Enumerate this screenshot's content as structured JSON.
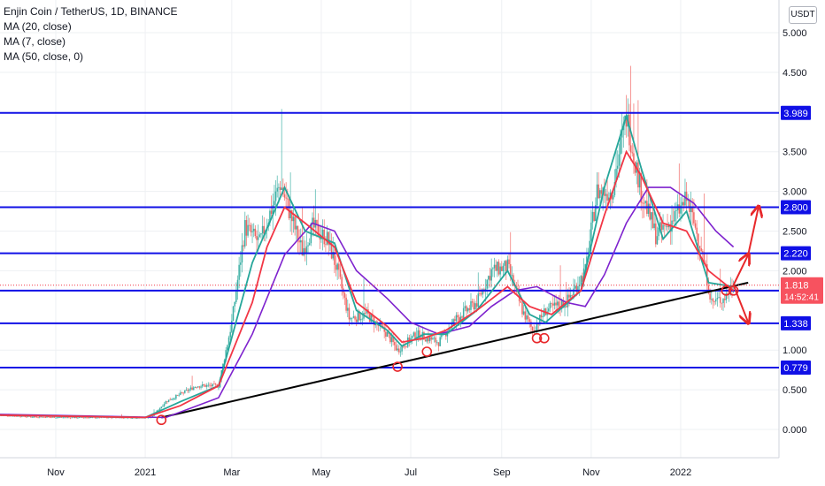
{
  "legend": {
    "symbol": "Enjin Coin / TetherUS, 1D, BINANCE",
    "ma20": "MA (20, close)",
    "ma7": "MA (7, close)",
    "ma50": "MA (50, close, 0)"
  },
  "unit_label": "USDT",
  "colors": {
    "grid": "#eef0f3",
    "axis_text": "#131722",
    "candle_up": "#26a69a",
    "candle_down": "#ef5350",
    "ma20": "#26a69a",
    "ma7": "#f23645",
    "ma50": "#7e22ce",
    "hline": "#1010e6",
    "trendline": "#000000",
    "annotation": "#e8282b",
    "price_tag": "#f7525f"
  },
  "chart_data": {
    "type": "candlestick",
    "x_scale": "time",
    "x_tick_labels": [
      "Nov",
      "2021",
      "Mar",
      "May",
      "Jul",
      "Sep",
      "Nov",
      "2022"
    ],
    "y_scale": "linear",
    "y_ticks": [
      "5.000",
      "4.500",
      "3.500",
      "3.000",
      "2.500",
      "2.000",
      "1.000",
      "0.500",
      "0.000"
    ],
    "ylim": [
      -0.3,
      5.3
    ],
    "horizontal_levels": [
      {
        "label": "3.989",
        "value": 3.989
      },
      {
        "label": "2.800",
        "value": 2.8
      },
      {
        "label": "2.220",
        "value": 2.22
      },
      {
        "label": "1.750",
        "value": 1.75
      },
      {
        "label": "1.338",
        "value": 1.338
      },
      {
        "label": "0.779",
        "value": 0.779
      }
    ],
    "last_price": {
      "label": "1.818",
      "value": 1.818,
      "countdown": "14:52:41"
    },
    "price_path": [
      [
        "2020-09-24",
        0.18
      ],
      [
        "2020-10-15",
        0.16
      ],
      [
        "2020-11-10",
        0.15
      ],
      [
        "2020-12-15",
        0.15
      ],
      [
        "2021-01-05",
        0.15
      ],
      [
        "2021-01-15",
        0.35
      ],
      [
        "2021-02-05",
        0.55
      ],
      [
        "2021-02-20",
        0.55
      ],
      [
        "2021-03-01",
        1.35
      ],
      [
        "2021-03-10",
        2.55
      ],
      [
        "2021-03-20",
        2.35
      ],
      [
        "2021-04-03",
        3.1
      ],
      [
        "2021-04-10",
        2.7
      ],
      [
        "2021-04-18",
        2.25
      ],
      [
        "2021-04-25",
        2.55
      ],
      [
        "2021-05-05",
        2.4
      ],
      [
        "2021-05-12",
        2.0
      ],
      [
        "2021-05-20",
        1.4
      ],
      [
        "2021-06-01",
        1.45
      ],
      [
        "2021-06-15",
        1.2
      ],
      [
        "2021-06-22",
        1.0
      ],
      [
        "2021-07-05",
        1.2
      ],
      [
        "2021-07-20",
        1.1
      ],
      [
        "2021-08-01",
        1.4
      ],
      [
        "2021-08-15",
        1.6
      ],
      [
        "2021-08-25",
        2.0
      ],
      [
        "2021-09-05",
        2.05
      ],
      [
        "2021-09-15",
        1.5
      ],
      [
        "2021-09-22",
        1.25
      ],
      [
        "2021-10-01",
        1.5
      ],
      [
        "2021-10-15",
        1.6
      ],
      [
        "2021-10-28",
        2.0
      ],
      [
        "2021-11-05",
        3.0
      ],
      [
        "2021-11-15",
        3.0
      ],
      [
        "2021-11-25",
        3.95
      ],
      [
        "2021-12-05",
        3.0
      ],
      [
        "2021-12-15",
        2.45
      ],
      [
        "2021-12-25",
        2.6
      ],
      [
        "2022-01-05",
        2.9
      ],
      [
        "2022-01-15",
        2.3
      ],
      [
        "2022-01-22",
        1.6
      ],
      [
        "2022-01-30",
        1.65
      ],
      [
        "2022-02-06",
        1.818
      ]
    ],
    "ma7_path": [
      [
        "2020-09-24",
        0.18
      ],
      [
        "2021-01-01",
        0.15
      ],
      [
        "2021-01-25",
        0.3
      ],
      [
        "2021-02-20",
        0.55
      ],
      [
        "2021-03-15",
        1.6
      ],
      [
        "2021-03-25",
        2.3
      ],
      [
        "2021-04-06",
        2.8
      ],
      [
        "2021-04-20",
        2.6
      ],
      [
        "2021-05-10",
        2.3
      ],
      [
        "2021-05-25",
        1.6
      ],
      [
        "2021-06-15",
        1.3
      ],
      [
        "2021-06-25",
        1.1
      ],
      [
        "2021-07-10",
        1.15
      ],
      [
        "2021-07-25",
        1.25
      ],
      [
        "2021-08-15",
        1.5
      ],
      [
        "2021-09-05",
        1.8
      ],
      [
        "2021-09-20",
        1.55
      ],
      [
        "2021-10-05",
        1.45
      ],
      [
        "2021-10-25",
        1.75
      ],
      [
        "2021-11-10",
        2.7
      ],
      [
        "2021-11-25",
        3.5
      ],
      [
        "2021-12-05",
        3.2
      ],
      [
        "2021-12-20",
        2.6
      ],
      [
        "2022-01-05",
        2.5
      ],
      [
        "2022-01-20",
        2.0
      ],
      [
        "2022-02-06",
        1.75
      ]
    ],
    "ma20_path": [
      [
        "2020-09-24",
        0.18
      ],
      [
        "2021-01-01",
        0.15
      ],
      [
        "2021-01-25",
        0.35
      ],
      [
        "2021-02-20",
        0.55
      ],
      [
        "2021-03-15",
        2.1
      ],
      [
        "2021-04-06",
        3.05
      ],
      [
        "2021-04-20",
        2.5
      ],
      [
        "2021-05-10",
        2.35
      ],
      [
        "2021-05-25",
        1.5
      ],
      [
        "2021-06-15",
        1.25
      ],
      [
        "2021-06-25",
        1.05
      ],
      [
        "2021-07-10",
        1.2
      ],
      [
        "2021-07-25",
        1.2
      ],
      [
        "2021-08-15",
        1.5
      ],
      [
        "2021-09-05",
        2.0
      ],
      [
        "2021-09-20",
        1.45
      ],
      [
        "2021-10-01",
        1.35
      ],
      [
        "2021-10-25",
        1.75
      ],
      [
        "2021-11-10",
        3.05
      ],
      [
        "2021-11-25",
        3.95
      ],
      [
        "2021-12-05",
        3.3
      ],
      [
        "2021-12-20",
        2.4
      ],
      [
        "2022-01-05",
        2.75
      ],
      [
        "2022-01-20",
        1.85
      ],
      [
        "2022-02-06",
        1.8
      ]
    ],
    "ma50_path": [
      [
        "2020-09-24",
        0.19
      ],
      [
        "2021-01-15",
        0.15
      ],
      [
        "2021-02-20",
        0.4
      ],
      [
        "2021-03-15",
        1.2
      ],
      [
        "2021-04-06",
        2.2
      ],
      [
        "2021-04-25",
        2.6
      ],
      [
        "2021-05-10",
        2.5
      ],
      [
        "2021-05-25",
        2.0
      ],
      [
        "2021-06-15",
        1.65
      ],
      [
        "2021-07-01",
        1.35
      ],
      [
        "2021-07-20",
        1.2
      ],
      [
        "2021-08-10",
        1.3
      ],
      [
        "2021-08-25",
        1.55
      ],
      [
        "2021-09-10",
        1.75
      ],
      [
        "2021-09-25",
        1.8
      ],
      [
        "2021-10-15",
        1.6
      ],
      [
        "2021-10-28",
        1.55
      ],
      [
        "2021-11-10",
        1.95
      ],
      [
        "2021-11-25",
        2.6
      ],
      [
        "2021-12-10",
        3.05
      ],
      [
        "2021-12-25",
        3.05
      ],
      [
        "2022-01-10",
        2.85
      ],
      [
        "2022-01-25",
        2.5
      ],
      [
        "2022-02-06",
        2.3
      ]
    ],
    "trendline": {
      "from": [
        "2021-01-12",
        0.15
      ],
      "to": [
        "2022-02-16",
        1.85
      ]
    },
    "touch_points": [
      [
        "2021-01-12",
        0.12
      ],
      [
        "2021-06-22",
        0.79
      ],
      [
        "2021-07-12",
        0.98
      ],
      [
        "2021-09-25",
        1.15
      ],
      [
        "2021-09-30",
        1.15
      ],
      [
        "2022-02-01",
        1.75
      ],
      [
        "2022-02-06",
        1.75
      ]
    ],
    "target_arrows": [
      {
        "from": [
          "2022-02-06",
          1.82
        ],
        "to": [
          "2022-02-16",
          2.2
        ]
      },
      {
        "from": [
          "2022-02-06",
          1.82
        ],
        "to": [
          "2022-02-16",
          1.35
        ]
      },
      {
        "from": [
          "2022-02-16",
          2.2
        ],
        "to": [
          "2022-02-23",
          2.8
        ]
      }
    ]
  }
}
